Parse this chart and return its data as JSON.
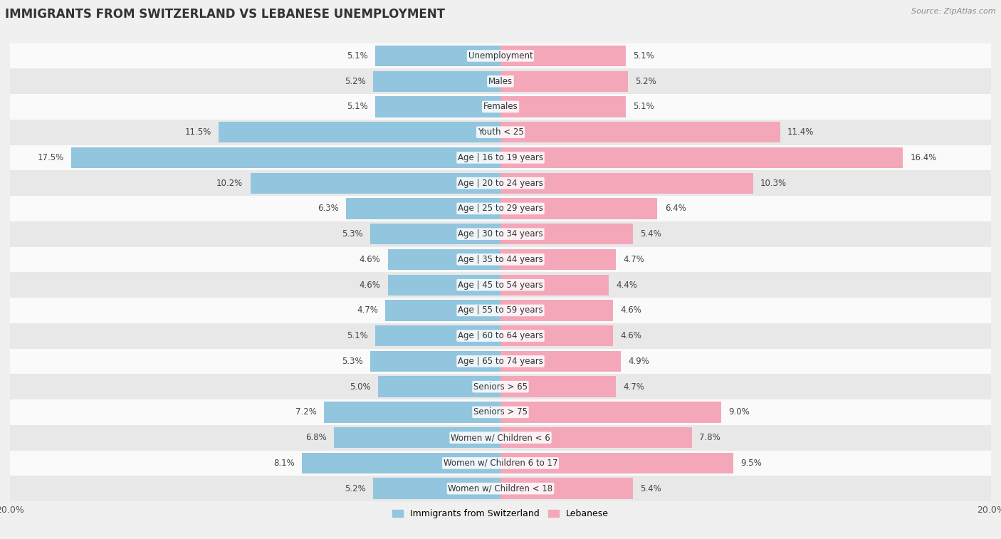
{
  "title": "IMMIGRANTS FROM SWITZERLAND VS LEBANESE UNEMPLOYMENT",
  "source": "Source: ZipAtlas.com",
  "categories": [
    "Unemployment",
    "Males",
    "Females",
    "Youth < 25",
    "Age | 16 to 19 years",
    "Age | 20 to 24 years",
    "Age | 25 to 29 years",
    "Age | 30 to 34 years",
    "Age | 35 to 44 years",
    "Age | 45 to 54 years",
    "Age | 55 to 59 years",
    "Age | 60 to 64 years",
    "Age | 65 to 74 years",
    "Seniors > 65",
    "Seniors > 75",
    "Women w/ Children < 6",
    "Women w/ Children 6 to 17",
    "Women w/ Children < 18"
  ],
  "switzerland_values": [
    5.1,
    5.2,
    5.1,
    11.5,
    17.5,
    10.2,
    6.3,
    5.3,
    4.6,
    4.6,
    4.7,
    5.1,
    5.3,
    5.0,
    7.2,
    6.8,
    8.1,
    5.2
  ],
  "lebanese_values": [
    5.1,
    5.2,
    5.1,
    11.4,
    16.4,
    10.3,
    6.4,
    5.4,
    4.7,
    4.4,
    4.6,
    4.6,
    4.9,
    4.7,
    9.0,
    7.8,
    9.5,
    5.4
  ],
  "switzerland_color": "#92c5de",
  "lebanese_color": "#f4a7b9",
  "switzerland_label": "Immigrants from Switzerland",
  "lebanese_label": "Lebanese",
  "max_val": 20.0,
  "background_color": "#f0f0f0",
  "row_bg_light": "#fafafa",
  "row_bg_dark": "#e8e8e8",
  "title_fontsize": 12,
  "label_fontsize": 8.5,
  "value_fontsize": 8.5,
  "legend_fontsize": 9
}
